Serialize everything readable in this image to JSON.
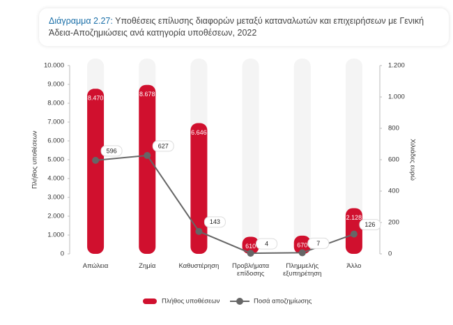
{
  "chart_data": {
    "type": "bar_line",
    "title_prefix": "Διάγραμμα 2.27:",
    "title": "Υποθέσεις επίλυσης διαφορών μεταξύ καταναλωτών και επιχειρήσεων με Γενική Άδεια-Αποζημιώσεις ανά κατηγορία υποθέσεων, 2022",
    "categories": [
      "Απώλεια",
      "Ζημία",
      "Καθυστέρηση",
      "Προβλήματα επίδοσης",
      "Πλημμελής εξυπηρέτηση",
      "Άλλο"
    ],
    "series": [
      {
        "name": "Πλήθος υποθέσεων",
        "color": "#d0102e",
        "values": [
          8470,
          8678,
          6646,
          610,
          670,
          2128
        ],
        "value_labels": [
          "8.470",
          "8.678",
          "6.646",
          "610",
          "670",
          "2.128"
        ]
      },
      {
        "name": "Ποσά αποζημίωσης",
        "color": "#666666",
        "axis": "y2",
        "values": [
          596,
          627,
          143,
          4,
          7,
          126
        ]
      }
    ],
    "y_label": "Πλήθος υποθέσεων",
    "y2_label": "Χιλιάδες ευρώ",
    "ylim": [
      0,
      10000
    ],
    "yticks": [
      0,
      {
        "value": 1000,
        "label": "1.000"
      },
      {
        "value": 2000,
        "label": "2.000"
      },
      {
        "value": 3000,
        "label": "3.000"
      },
      {
        "value": 4000,
        "label": "4.000"
      },
      {
        "value": 5000,
        "label": "5.000"
      },
      {
        "value": 6000,
        "label": "6.000"
      },
      {
        "value": 7000,
        "label": "7.000"
      },
      {
        "value": 8000,
        "label": "8.000"
      },
      {
        "value": 9000,
        "label": "9.000"
      },
      {
        "value": 10000,
        "label": "10.000"
      }
    ],
    "y2lim": [
      0,
      1200
    ],
    "y2ticks": [
      0,
      200,
      400,
      600,
      800,
      {
        "value": 1000,
        "label": "1.000"
      },
      {
        "value": 1200,
        "label": "1.200"
      }
    ]
  }
}
